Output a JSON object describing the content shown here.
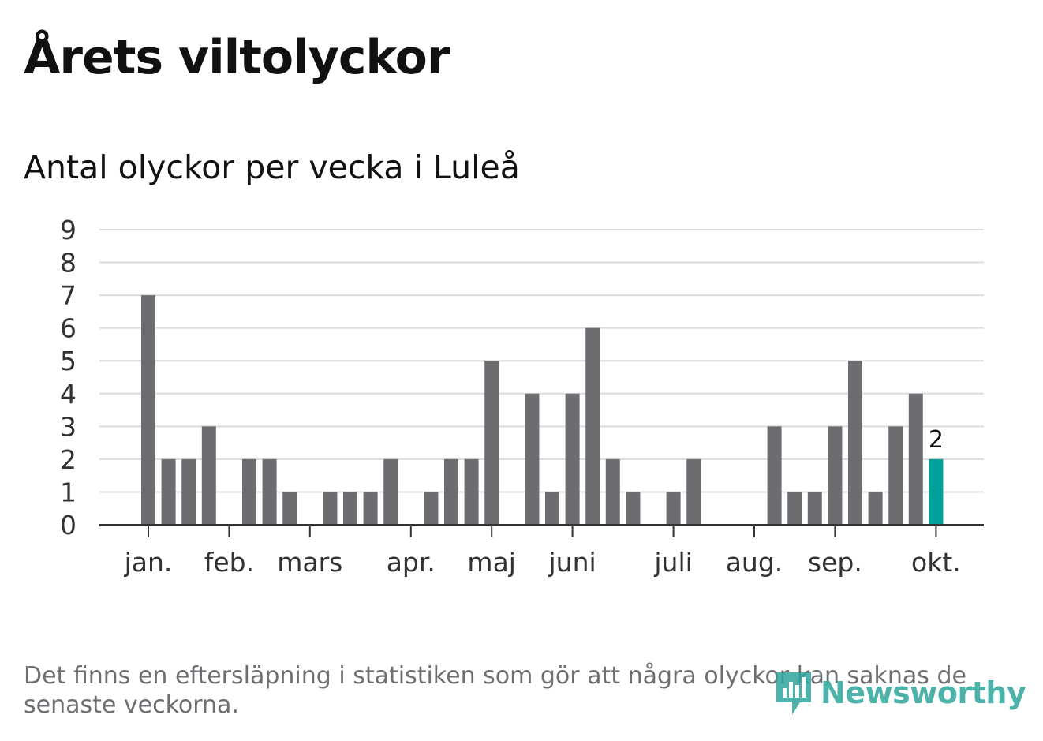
{
  "header": {
    "title": "Årets viltolyckor",
    "subtitle": "Antal olyckor per vecka i Luleå"
  },
  "chart_data": {
    "type": "bar",
    "y_ticks": [
      "0",
      "1",
      "2",
      "3",
      "4",
      "5",
      "6",
      "7",
      "8",
      "9"
    ],
    "ylim": [
      0,
      9
    ],
    "grid": true,
    "months": [
      {
        "label": "jan.",
        "week": 1
      },
      {
        "label": "feb.",
        "week": 5
      },
      {
        "label": "mars",
        "week": 9
      },
      {
        "label": "apr.",
        "week": 14
      },
      {
        "label": "maj",
        "week": 18
      },
      {
        "label": "juni",
        "week": 22
      },
      {
        "label": "juli",
        "week": 27
      },
      {
        "label": "aug.",
        "week": 31
      },
      {
        "label": "sep.",
        "week": 35
      },
      {
        "label": "okt.",
        "week": 40
      }
    ],
    "weeks": [
      1,
      2,
      3,
      4,
      5,
      6,
      7,
      8,
      9,
      10,
      11,
      12,
      13,
      14,
      15,
      16,
      17,
      18,
      19,
      20,
      21,
      22,
      23,
      24,
      25,
      26,
      27,
      28,
      29,
      30,
      31,
      32,
      33,
      34,
      35,
      36,
      37,
      38,
      39,
      40
    ],
    "values": [
      7,
      2,
      2,
      3,
      0,
      2,
      2,
      1,
      0,
      1,
      1,
      1,
      2,
      0,
      1,
      2,
      2,
      5,
      0,
      4,
      1,
      4,
      6,
      2,
      1,
      0,
      1,
      2,
      0,
      0,
      0,
      3,
      1,
      1,
      3,
      5,
      1,
      3,
      4,
      2
    ],
    "highlight_index": 39,
    "highlight_label": "2",
    "bar_color": "#6d6d71",
    "highlight_color": "#00a19a",
    "grid_color": "#dcdcdc",
    "axis_color": "#333333"
  },
  "footnote": "Det finns en eftersläpning i statistiken som gör att några olyckor kan saknas de senaste veckorna.",
  "logo": {
    "text": "Newsworthy",
    "icon": "newsworthy-logo-icon",
    "color": "#2fa59c"
  }
}
